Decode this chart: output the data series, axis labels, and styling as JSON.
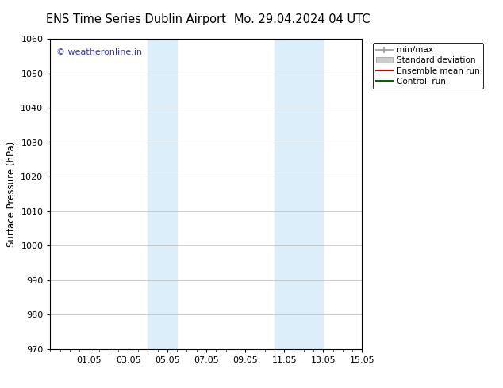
{
  "title_left": "ENS Time Series Dublin Airport",
  "title_right": "Mo. 29.04.2024 04 UTC",
  "ylabel": "Surface Pressure (hPa)",
  "ylim": [
    970,
    1060
  ],
  "yticks": [
    970,
    980,
    990,
    1000,
    1010,
    1020,
    1030,
    1040,
    1050,
    1060
  ],
  "xtick_labels": [
    "01.05",
    "03.05",
    "05.05",
    "07.05",
    "09.05",
    "11.05",
    "13.05",
    "15.05"
  ],
  "xtick_positions": [
    2,
    4,
    6,
    8,
    10,
    12,
    14,
    16
  ],
  "xlim": [
    0,
    16
  ],
  "shaded_bands": [
    {
      "x_start": 5.0,
      "x_end": 6.5,
      "color": "#dceef9"
    },
    {
      "x_start": 11.5,
      "x_end": 14.0,
      "color": "#dceef9"
    }
  ],
  "watermark": "© weatheronline.in",
  "watermark_color": "#3333cc",
  "legend_items": [
    {
      "label": "min/max",
      "color": "#999999",
      "lw": 1.2
    },
    {
      "label": "Standard deviation",
      "color": "#cccccc",
      "lw": 6
    },
    {
      "label": "Ensemble mean run",
      "color": "#cc0000",
      "lw": 1.5
    },
    {
      "label": "Controll run",
      "color": "#006600",
      "lw": 1.5
    }
  ],
  "background_color": "#ffffff",
  "grid_color": "#bbbbbb",
  "title_fontsize": 10.5,
  "axis_label_fontsize": 8.5,
  "tick_fontsize": 8,
  "legend_fontsize": 7.5
}
